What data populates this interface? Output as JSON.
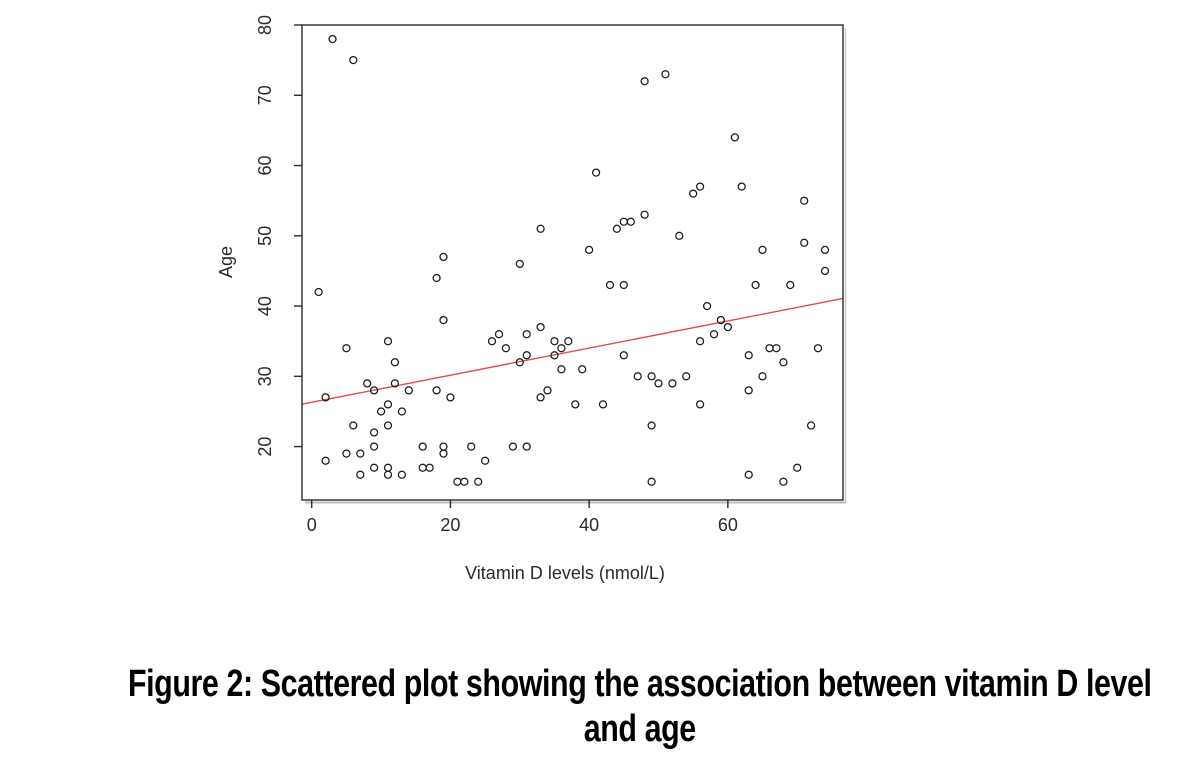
{
  "figure": {
    "background": "#ffffff",
    "caption_line1": "Figure 2: Scattered plot showing the association between vitamin D level",
    "caption_line2": "and age"
  },
  "chart_data": {
    "type": "scatter",
    "title": "",
    "xlabel": "Vitamin D levels (nmol/L)",
    "ylabel": "Age",
    "xlim": [
      -1.4,
      76.6
    ],
    "ylim": [
      12.4,
      80
    ],
    "x_ticks": [
      0,
      20,
      40,
      60
    ],
    "y_ticks": [
      20,
      30,
      40,
      50,
      60,
      70,
      80
    ],
    "grid": false,
    "legend": "none",
    "marker": "open-circle",
    "marker_color": "#1a1a1a",
    "axis_color": "#2a2a2a",
    "points": [
      [
        3,
        78
      ],
      [
        6,
        75
      ],
      [
        51,
        73
      ],
      [
        48,
        72
      ],
      [
        61,
        64
      ],
      [
        41,
        59
      ],
      [
        56,
        57
      ],
      [
        62,
        57
      ],
      [
        55,
        56
      ],
      [
        71,
        55
      ],
      [
        48,
        53
      ],
      [
        45,
        52
      ],
      [
        46,
        52
      ],
      [
        44,
        51
      ],
      [
        33,
        51
      ],
      [
        53,
        50
      ],
      [
        71,
        49
      ],
      [
        40,
        48
      ],
      [
        65,
        48
      ],
      [
        74,
        48
      ],
      [
        19,
        47
      ],
      [
        30,
        46
      ],
      [
        74,
        45
      ],
      [
        18,
        44
      ],
      [
        43,
        43
      ],
      [
        45,
        43
      ],
      [
        64,
        43
      ],
      [
        69,
        43
      ],
      [
        1,
        42
      ],
      [
        57,
        40
      ],
      [
        19,
        38
      ],
      [
        59,
        38
      ],
      [
        33,
        37
      ],
      [
        60,
        37
      ],
      [
        27,
        36
      ],
      [
        31,
        36
      ],
      [
        58,
        36
      ],
      [
        11,
        35
      ],
      [
        26,
        35
      ],
      [
        35,
        35
      ],
      [
        37,
        35
      ],
      [
        56,
        35
      ],
      [
        5,
        34
      ],
      [
        28,
        34
      ],
      [
        36,
        34
      ],
      [
        66,
        34
      ],
      [
        67,
        34
      ],
      [
        73,
        34
      ],
      [
        31,
        33
      ],
      [
        35,
        33
      ],
      [
        45,
        33
      ],
      [
        63,
        33
      ],
      [
        12,
        32
      ],
      [
        30,
        32
      ],
      [
        68,
        32
      ],
      [
        36,
        31
      ],
      [
        39,
        31
      ],
      [
        47,
        30
      ],
      [
        49,
        30
      ],
      [
        54,
        30
      ],
      [
        65,
        30
      ],
      [
        50,
        29
      ],
      [
        52,
        29
      ],
      [
        8,
        29
      ],
      [
        12,
        29
      ],
      [
        9,
        28
      ],
      [
        14,
        28
      ],
      [
        18,
        28
      ],
      [
        34,
        28
      ],
      [
        63,
        28
      ],
      [
        2,
        27
      ],
      [
        20,
        27
      ],
      [
        33,
        27
      ],
      [
        11,
        26
      ],
      [
        38,
        26
      ],
      [
        42,
        26
      ],
      [
        56,
        26
      ],
      [
        10,
        25
      ],
      [
        13,
        25
      ],
      [
        6,
        23
      ],
      [
        11,
        23
      ],
      [
        49,
        23
      ],
      [
        72,
        23
      ],
      [
        9,
        22
      ],
      [
        9,
        20
      ],
      [
        16,
        20
      ],
      [
        19,
        20
      ],
      [
        23,
        20
      ],
      [
        29,
        20
      ],
      [
        31,
        20
      ],
      [
        5,
        19
      ],
      [
        7,
        19
      ],
      [
        19,
        19
      ],
      [
        2,
        18
      ],
      [
        25,
        18
      ],
      [
        9,
        17
      ],
      [
        11,
        17
      ],
      [
        16,
        17
      ],
      [
        17,
        17
      ],
      [
        70,
        17
      ],
      [
        7,
        16
      ],
      [
        11,
        16
      ],
      [
        13,
        16
      ],
      [
        63,
        16
      ],
      [
        21,
        15
      ],
      [
        22,
        15
      ],
      [
        24,
        15
      ],
      [
        49,
        15
      ],
      [
        68,
        15
      ]
    ],
    "regression_line": {
      "slope": 0.193,
      "intercept": 26.3,
      "x_start": -1.4,
      "x_end": 76.6,
      "color": "#e14b4b"
    }
  }
}
